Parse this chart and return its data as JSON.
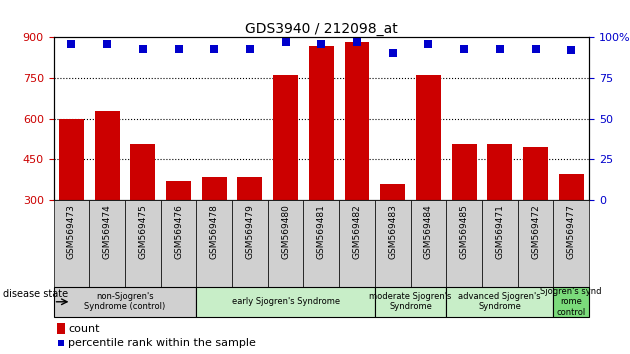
{
  "title": "GDS3940 / 212098_at",
  "samples": [
    "GSM569473",
    "GSM569474",
    "GSM569475",
    "GSM569476",
    "GSM569478",
    "GSM569479",
    "GSM569480",
    "GSM569481",
    "GSM569482",
    "GSM569483",
    "GSM569484",
    "GSM569485",
    "GSM569471",
    "GSM569472",
    "GSM569477"
  ],
  "counts": [
    597,
    627,
    507,
    370,
    385,
    385,
    762,
    868,
    882,
    360,
    762,
    507,
    507,
    497,
    395
  ],
  "percentile": [
    96,
    96,
    93,
    93,
    93,
    93,
    97,
    96,
    97,
    90,
    96,
    93,
    93,
    93,
    92
  ],
  "bar_color": "#cc0000",
  "dot_color": "#0000cc",
  "ylim_left": [
    300,
    900
  ],
  "ylim_right": [
    0,
    100
  ],
  "yticks_left": [
    300,
    450,
    600,
    750,
    900
  ],
  "yticks_right": [
    0,
    25,
    50,
    75,
    100
  ],
  "grid_lines": [
    750,
    600,
    450
  ],
  "groups": [
    {
      "label": "non-Sjogren's\nSyndrome (control)",
      "start": 0,
      "end": 3,
      "color": "#d0d0d0"
    },
    {
      "label": "early Sjogren's Syndrome",
      "start": 4,
      "end": 8,
      "color": "#c8eec8"
    },
    {
      "label": "moderate Sjogren's\nSyndrome",
      "start": 9,
      "end": 10,
      "color": "#c8eec8"
    },
    {
      "label": "advanced Sjogren's\nSyndrome",
      "start": 11,
      "end": 13,
      "color": "#c8eec8"
    },
    {
      "label": "Sjogren's synd\nrome\ncontrol",
      "start": 14,
      "end": 14,
      "color": "#7bdb7b"
    }
  ],
  "legend_count_label": "count",
  "legend_pct_label": "percentile rank within the sample",
  "disease_state_label": "disease state"
}
